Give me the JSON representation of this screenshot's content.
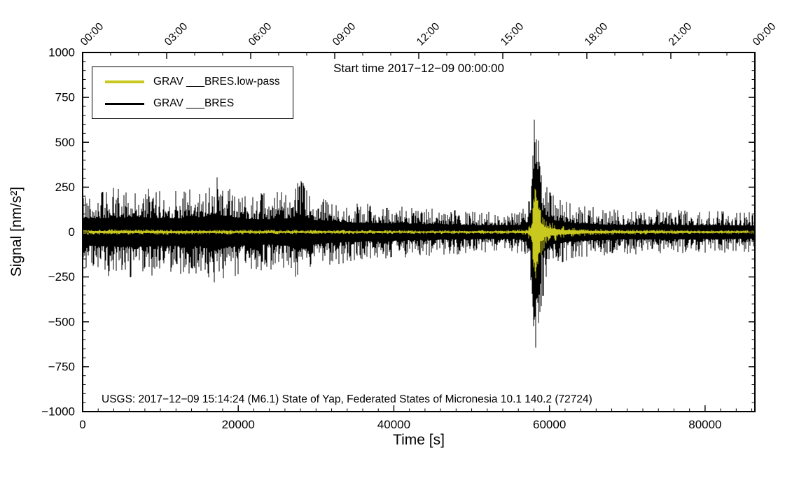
{
  "chart_data": {
    "type": "line",
    "title": "Start time 2017−12−09 00:00:00",
    "xlabel": "Time [s]",
    "ylabel": "Signal [nm/s²]",
    "xlim": [
      0,
      86400
    ],
    "ylim": [
      -1000,
      1000
    ],
    "grid": false,
    "colors": {
      "background": "#ffffff",
      "frame": "#000000",
      "lowpass": "#c8c81e",
      "raw": "#000000"
    },
    "x_ticks": {
      "values": [
        0,
        20000,
        40000,
        60000,
        80000
      ],
      "labels": [
        "0",
        "20000",
        "40000",
        "60000",
        "80000"
      ],
      "minor": 2000
    },
    "y_ticks": {
      "values": [
        -1000,
        -750,
        -500,
        -250,
        0,
        250,
        500,
        750,
        1000
      ],
      "labels": [
        "−1000",
        "−750",
        "−500",
        "−250",
        "0",
        "250",
        "500",
        "750",
        "1000"
      ],
      "minor": 50
    },
    "top_axis": {
      "values": [
        0,
        10800,
        21600,
        32400,
        43200,
        54000,
        64800,
        75600,
        86400
      ],
      "labels": [
        "00:00",
        "03:00",
        "06:00",
        "09:00",
        "12:00",
        "15:00",
        "18:00",
        "21:00",
        "00:00"
      ],
      "minor_interval_s": 3600
    },
    "legend": {
      "position": "top-left",
      "entries": [
        {
          "label": "GRAV ___BRES.low-pass",
          "color": "#c8c81e",
          "line_width": 4
        },
        {
          "label": "GRAV ___BRES",
          "color": "#000000",
          "line_width": 3
        }
      ]
    },
    "annotation": "USGS: 2017−12−09 15:14:24 (M6.1) State of Yap, Federated States of Micronesia 10.1 140.2 (72724)",
    "series": [
      {
        "name": "GRAV ___BRES",
        "color": "#000000",
        "style": "noise-band",
        "envelope": [
          [
            0,
            235
          ],
          [
            3000,
            245
          ],
          [
            6000,
            255
          ],
          [
            9000,
            245
          ],
          [
            12000,
            240
          ],
          [
            15000,
            245
          ],
          [
            17000,
            320
          ],
          [
            18500,
            260
          ],
          [
            21000,
            230
          ],
          [
            24000,
            215
          ],
          [
            26500,
            240
          ],
          [
            28000,
            295
          ],
          [
            29500,
            215
          ],
          [
            32000,
            185
          ],
          [
            35000,
            165
          ],
          [
            38000,
            155
          ],
          [
            41000,
            145
          ],
          [
            44000,
            135
          ],
          [
            47000,
            128
          ],
          [
            50000,
            120
          ],
          [
            53000,
            115
          ],
          [
            56000,
            118
          ],
          [
            57300,
            170
          ],
          [
            57800,
            520
          ],
          [
            58100,
            660
          ],
          [
            58500,
            620
          ],
          [
            59000,
            400
          ],
          [
            59600,
            280
          ],
          [
            60500,
            210
          ],
          [
            62000,
            170
          ],
          [
            64000,
            148
          ],
          [
            67000,
            132
          ],
          [
            70000,
            125
          ],
          [
            74000,
            128
          ],
          [
            78000,
            120
          ],
          [
            82000,
            118
          ],
          [
            86400,
            112
          ]
        ]
      },
      {
        "name": "GRAV ___BRES.low-pass",
        "color": "#c8c81e",
        "style": "noise-band",
        "envelope": [
          [
            0,
            18
          ],
          [
            8000,
            16
          ],
          [
            16000,
            14
          ],
          [
            24000,
            13
          ],
          [
            32000,
            12
          ],
          [
            40000,
            11
          ],
          [
            48000,
            11
          ],
          [
            55000,
            11
          ],
          [
            57200,
            18
          ],
          [
            57700,
            90
          ],
          [
            58000,
            300
          ],
          [
            58300,
            255
          ],
          [
            58700,
            160
          ],
          [
            59300,
            95
          ],
          [
            60000,
            60
          ],
          [
            61500,
            38
          ],
          [
            63000,
            28
          ],
          [
            65000,
            20
          ],
          [
            68000,
            16
          ],
          [
            74000,
            13
          ],
          [
            86400,
            11
          ]
        ]
      }
    ]
  }
}
